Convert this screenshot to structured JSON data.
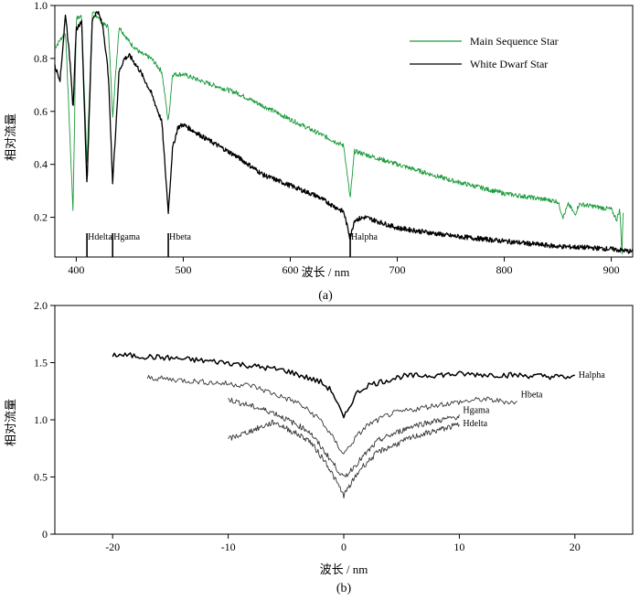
{
  "chart_data": [
    {
      "id": "a",
      "type": "line",
      "panel_label": "(a)",
      "xlabel": "波长 / nm",
      "ylabel": "相对流量",
      "xlim": [
        380,
        920
      ],
      "ylim": [
        0.05,
        1.0
      ],
      "xticks": [
        {
          "value": 400,
          "label": "400"
        },
        {
          "value": 500,
          "label": "500"
        },
        {
          "value": 600,
          "label": "600"
        },
        {
          "value": 700,
          "label": "700"
        },
        {
          "value": 800,
          "label": "800"
        },
        {
          "value": 900,
          "label": "900"
        }
      ],
      "yticks": [
        {
          "value": 0.2,
          "label": "0.2"
        },
        {
          "value": 0.4,
          "label": "0.4"
        },
        {
          "value": 0.6,
          "label": "0.6"
        },
        {
          "value": 0.8,
          "label": "0.8"
        },
        {
          "value": 1.0,
          "label": "1.0"
        }
      ],
      "legend_position": "top-right",
      "series": [
        {
          "name": "Main Sequence Star",
          "color": "#1a9a3a",
          "x": [
            380,
            390,
            397,
            400,
            405,
            410,
            415,
            420,
            425,
            430,
            434,
            440,
            450,
            460,
            470,
            480,
            486,
            490,
            500,
            520,
            550,
            600,
            650,
            656,
            660,
            700,
            750,
            800,
            850,
            855,
            860,
            866,
            870,
            900,
            905,
            908,
            910,
            911
          ],
          "y": [
            0.84,
            0.9,
            0.22,
            0.95,
            0.96,
            0.4,
            0.97,
            0.96,
            0.93,
            0.92,
            0.58,
            0.92,
            0.86,
            0.82,
            0.8,
            0.75,
            0.56,
            0.74,
            0.74,
            0.71,
            0.67,
            0.57,
            0.47,
            0.27,
            0.45,
            0.4,
            0.34,
            0.29,
            0.26,
            0.2,
            0.25,
            0.21,
            0.25,
            0.23,
            0.19,
            0.23,
            0.06,
            0.22
          ]
        },
        {
          "name": "White Dwarf Star",
          "color": "#000000",
          "x": [
            380,
            385,
            390,
            395,
            397,
            400,
            405,
            410,
            415,
            420,
            425,
            430,
            434,
            440,
            445,
            450,
            460,
            470,
            480,
            486,
            490,
            495,
            500,
            520,
            550,
            575,
            600,
            625,
            650,
            656,
            660,
            670,
            700,
            750,
            800,
            850,
            880,
            900,
            920
          ],
          "y": [
            0.77,
            0.72,
            0.97,
            0.75,
            0.61,
            0.91,
            0.94,
            0.32,
            0.95,
            0.98,
            0.92,
            0.74,
            0.33,
            0.75,
            0.8,
            0.81,
            0.75,
            0.67,
            0.56,
            0.22,
            0.46,
            0.54,
            0.55,
            0.5,
            0.43,
            0.36,
            0.32,
            0.28,
            0.22,
            0.12,
            0.19,
            0.2,
            0.16,
            0.13,
            0.11,
            0.09,
            0.085,
            0.08,
            0.07
          ]
        }
      ],
      "annotations": [
        {
          "x": 410,
          "label": "Hdelta"
        },
        {
          "x": 434,
          "label": "Hgama"
        },
        {
          "x": 486,
          "label": "Hbeta"
        },
        {
          "x": 656,
          "label": "Halpha"
        }
      ]
    },
    {
      "id": "b",
      "type": "line",
      "panel_label": "(b)",
      "xlabel": "波长 / nm",
      "ylabel": "相对流量",
      "xlim": [
        -25,
        25
      ],
      "ylim": [
        0,
        2.0
      ],
      "xticks": [
        {
          "value": -20,
          "label": "-20"
        },
        {
          "value": -10,
          "label": "-10"
        },
        {
          "value": 0,
          "label": "0"
        },
        {
          "value": 10,
          "label": "10"
        },
        {
          "value": 20,
          "label": "20"
        }
      ],
      "yticks": [
        {
          "value": 0,
          "label": "0"
        },
        {
          "value": 0.5,
          "label": "0.5"
        },
        {
          "value": 1.0,
          "label": "1.0"
        },
        {
          "value": 1.5,
          "label": "1.5"
        },
        {
          "value": 2.0,
          "label": "2.0"
        }
      ],
      "series": [
        {
          "name": "Halpha",
          "color": "#000000",
          "x": [
            -20,
            -15,
            -10,
            -5,
            -2,
            -1,
            0,
            1,
            2,
            5,
            10,
            15,
            20
          ],
          "y": [
            1.57,
            1.54,
            1.5,
            1.43,
            1.33,
            1.25,
            1.01,
            1.22,
            1.3,
            1.38,
            1.4,
            1.39,
            1.37
          ]
        },
        {
          "name": "Hbeta",
          "color": "#333333",
          "x": [
            -17,
            -12,
            -8,
            -4,
            -2,
            -1,
            0,
            1,
            2,
            4,
            8,
            12,
            15
          ],
          "y": [
            1.37,
            1.33,
            1.3,
            1.15,
            1.0,
            0.85,
            0.7,
            0.84,
            0.95,
            1.05,
            1.13,
            1.18,
            1.15
          ]
        },
        {
          "name": "Hgama",
          "color": "#333333",
          "x": [
            -10,
            -6,
            -3,
            -1.5,
            0,
            1.5,
            3,
            6,
            10
          ],
          "y": [
            1.18,
            1.06,
            0.9,
            0.7,
            0.49,
            0.66,
            0.82,
            0.95,
            1.03
          ]
        },
        {
          "name": "Hdelta",
          "color": "#333333",
          "x": [
            -10,
            -6,
            -3,
            -1.5,
            0,
            1.5,
            3,
            6,
            10
          ],
          "y": [
            0.83,
            0.98,
            0.82,
            0.62,
            0.34,
            0.58,
            0.72,
            0.85,
            0.96
          ]
        }
      ]
    }
  ]
}
